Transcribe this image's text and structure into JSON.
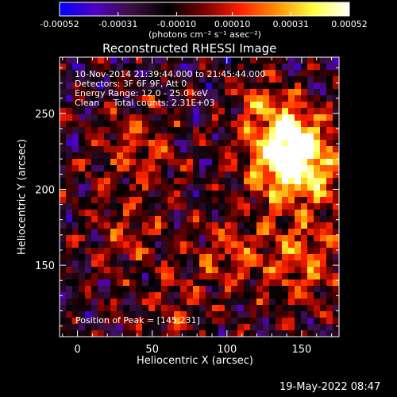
{
  "chart_data": {
    "type": "heatmap",
    "title": "Reconstructed RHESSI Image",
    "xlabel": "Heliocentric X (arcsec)",
    "ylabel": "Heliocentric Y (arcsec)",
    "xlim": [
      -12,
      175
    ],
    "ylim": [
      103,
      287
    ],
    "x_ticks": [
      0,
      50,
      100,
      150
    ],
    "y_ticks": [
      150,
      200,
      250
    ],
    "colorbar": {
      "min": -0.00052,
      "max": 0.00052,
      "tick_values": [
        -0.00052,
        -0.00031,
        -0.0001,
        0.0001,
        0.00031,
        0.00052
      ],
      "tick_labels": [
        "-0.00052",
        "-0.00031",
        "-0.00010",
        "0.00010",
        "0.00031",
        "0.00052"
      ],
      "unit_label": "(photons cm⁻² s⁻¹ asec⁻²)",
      "colors": [
        "#0000ff",
        "#5000c0",
        "#3a1040",
        "#000000",
        "#7a0000",
        "#ff2000",
        "#ff9000",
        "#ffff40",
        "#ffffff"
      ]
    },
    "annotations": [
      "10-Nov-2014 21:39:44.000 to 21:45:44.000",
      "Detectors: 3F 6F 9F, Att 0",
      "Energy Range: 12.0 - 25.0 keV",
      "Clean     Total counts: 2.31E+03"
    ],
    "peak": {
      "label": "Position of Peak = [145,231]",
      "x": 145,
      "y": 231
    },
    "grid": false
  },
  "footer": {
    "timestamp": "19-May-2022 08:47"
  }
}
